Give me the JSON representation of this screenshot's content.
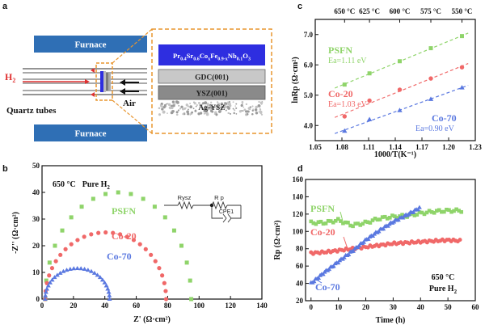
{
  "colors": {
    "furnace_fill": "#2f6fb5",
    "cathode_fill": "#2e2ee0",
    "gdc_fill": "#c8c8c8",
    "ysz_fill": "#8a8a8a",
    "zoom_border": "#e8952e",
    "h2_arrow": "#e03030",
    "psfn": "#8fd46a",
    "co20": "#f06868",
    "co70": "#5a78e0"
  },
  "panel_a": {
    "label": "a",
    "furnace_top": "Furnace",
    "furnace_bottom": "Furnace",
    "h2": "H",
    "h2_sub": "2",
    "quartz_tubes": "Quartz tubes",
    "air": "Air",
    "layer_cathode": "Pr0.4Sr0.6CoxFe0.9-xNb0.1O3",
    "layer_gdc": "GDC(001)",
    "layer_ysz": "YSZ(001)",
    "layer_ag": "Ag-YSZ"
  },
  "panel_b": {
    "label": "b",
    "condition_temp": "650 °C",
    "condition_gas": "Pure H",
    "condition_gas_sub": "2",
    "circuit_r1": "Rysz",
    "circuit_r2": "R p",
    "circuit_cpe": "CPE1",
    "xlabel": "Z' (Ω·cm²)",
    "ylabel": "-Z'' (Ω·cm²)"
  },
  "panel_c": {
    "label": "c",
    "xlabel": "1000/T(K⁻¹)",
    "ylabel": "lnRp (Ω·cm²)",
    "psfn_ea": "Ea=1.11 eV",
    "co20_ea": "Ea=1.03 eV",
    "co70_ea": "Ea=0.90 eV"
  },
  "panel_d": {
    "label": "d",
    "xlabel": "Time (h)",
    "ylabel": "Rp (Ω·cm²)",
    "condition_temp": "650 °C",
    "condition_gas": "Pure H",
    "condition_gas_sub": "2"
  },
  "chart_data": [
    {
      "type": "scatter",
      "panel": "b",
      "xlabel": "Z' (Ω·cm²)",
      "ylabel": "-Z'' (Ω·cm²)",
      "xlim": [
        0,
        140
      ],
      "ylim": [
        0,
        50
      ],
      "xticks": [
        0,
        20,
        40,
        60,
        80,
        100,
        120,
        140
      ],
      "yticks": [
        0,
        10,
        20,
        30,
        40,
        50
      ],
      "series": [
        {
          "name": "PSFN",
          "color": "#8fd46a",
          "arc": {
            "r0": 2,
            "r1": 95,
            "peak": 40
          }
        },
        {
          "name": "Co-20",
          "color": "#f06868",
          "arc": {
            "r0": 2,
            "r1": 79,
            "peak": 25
          }
        },
        {
          "name": "Co-70",
          "color": "#5a78e0",
          "arc": {
            "r0": 2,
            "r1": 43,
            "peak": 11.5
          }
        }
      ]
    },
    {
      "type": "scatter",
      "panel": "c",
      "xlabel": "1000/T(K⁻¹)",
      "ylabel": "lnRp (Ω·cm²)",
      "xlim": [
        1.05,
        1.23
      ],
      "ylim": [
        3.5,
        7.5
      ],
      "xticks": [
        1.05,
        1.08,
        1.11,
        1.14,
        1.17,
        1.2,
        1.23
      ],
      "yticks": [
        4.0,
        5.0,
        6.0,
        7.0
      ],
      "top_axis_ticks": [
        {
          "label": "650 °C",
          "x": 1.083
        },
        {
          "label": "625 °C",
          "x": 1.111
        },
        {
          "label": "600 °C",
          "x": 1.145
        },
        {
          "label": "575 °C",
          "x": 1.18
        },
        {
          "label": "550 °C",
          "x": 1.215
        }
      ],
      "series": [
        {
          "name": "PSFN",
          "color": "#8fd46a",
          "x": [
            1.083,
            1.111,
            1.145,
            1.18,
            1.215
          ],
          "y": [
            5.35,
            5.72,
            6.12,
            6.55,
            6.95
          ]
        },
        {
          "name": "Co-20",
          "color": "#f06868",
          "x": [
            1.083,
            1.111,
            1.145,
            1.18,
            1.215
          ],
          "y": [
            4.3,
            4.82,
            5.18,
            5.55,
            5.92
          ]
        },
        {
          "name": "Co-70",
          "color": "#5a78e0",
          "x": [
            1.083,
            1.111,
            1.145,
            1.18,
            1.215
          ],
          "y": [
            3.82,
            4.2,
            4.5,
            4.87,
            5.25
          ]
        }
      ]
    },
    {
      "type": "scatter",
      "panel": "d",
      "xlabel": "Time (h)",
      "ylabel": "Rp (Ω·cm²)",
      "xlim": [
        -2,
        60
      ],
      "ylim": [
        20,
        160
      ],
      "xticks": [
        0,
        10,
        20,
        30,
        40,
        50,
        60
      ],
      "yticks": [
        20,
        40,
        60,
        80,
        100,
        120,
        140,
        160
      ],
      "series": [
        {
          "name": "PSFN",
          "color": "#8fd46a",
          "x": [
            0,
            5,
            10,
            15,
            20,
            25,
            30,
            35,
            40,
            45,
            50,
            55
          ],
          "y": [
            110,
            110,
            113,
            107,
            110,
            115,
            117,
            118,
            121,
            123,
            124,
            124
          ]
        },
        {
          "name": "Co-20",
          "color": "#f06868",
          "x": [
            0,
            5,
            10,
            15,
            20,
            25,
            30,
            35,
            40,
            45,
            50,
            55
          ],
          "y": [
            75,
            76,
            78,
            80,
            82,
            84,
            86,
            87,
            88,
            89,
            90,
            89
          ]
        },
        {
          "name": "Co-70",
          "color": "#5a78e0",
          "x": [
            0,
            2,
            5,
            8,
            10,
            15,
            20,
            25,
            30,
            35,
            38,
            40
          ],
          "y": [
            40,
            45,
            53,
            60,
            65,
            77,
            90,
            101,
            111,
            119,
            124,
            128
          ]
        }
      ]
    }
  ]
}
